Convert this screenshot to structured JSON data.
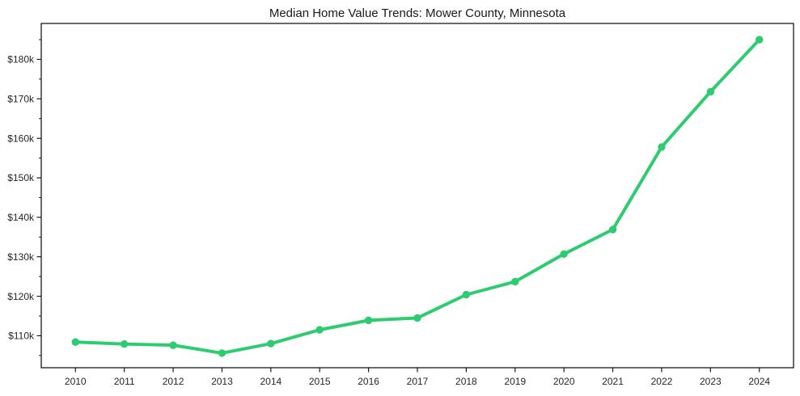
{
  "figure": {
    "background": "#ffffff",
    "frame_color": "#1a1a1a",
    "tick_color": "#1a1a1a",
    "tick_label_color": "#262626"
  },
  "chart_data": {
    "type": "line",
    "title": "Median Home Value Trends: Mower County, Minnesota",
    "series_name": "Median home value",
    "x": [
      2010,
      2011,
      2012,
      2013,
      2014,
      2015,
      2016,
      2017,
      2018,
      2019,
      2020,
      2021,
      2022,
      2023,
      2024
    ],
    "values": [
      108400,
      107900,
      107600,
      105600,
      108000,
      111500,
      113900,
      114500,
      120400,
      123700,
      130700,
      136900,
      157800,
      171800,
      185000
    ],
    "x_tick_labels": [
      "2010",
      "2011",
      "2012",
      "2013",
      "2014",
      "2015",
      "2016",
      "2017",
      "2018",
      "2019",
      "2020",
      "2021",
      "2022",
      "2023",
      "2024"
    ],
    "y_tick_values": [
      110000,
      120000,
      130000,
      140000,
      150000,
      160000,
      170000,
      180000
    ],
    "y_tick_labels": [
      "$110k",
      "$120k",
      "$130k",
      "$140k",
      "$150k",
      "$160k",
      "$170k",
      "$180k"
    ],
    "y_minor_tick_values": [
      105000,
      115000,
      125000,
      135000,
      145000,
      155000,
      165000,
      175000,
      185000
    ],
    "xlim": [
      2009.3,
      2024.7
    ],
    "ylim": [
      101900,
      189100
    ],
    "xlabel": "",
    "ylabel": "",
    "grid": false,
    "legend": null,
    "line_color": "#2ecc71",
    "marker": "circle"
  }
}
